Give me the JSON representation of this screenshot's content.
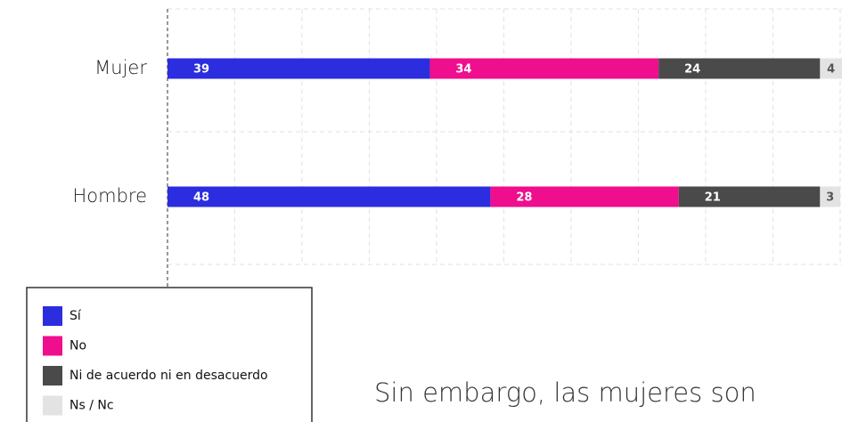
{
  "chart_data": {
    "type": "stacked-barh",
    "categories": [
      "Mujer",
      "Hombre"
    ],
    "series": [
      {
        "name": "Sí",
        "color": "#2b2ddf",
        "values": [
          39,
          48
        ]
      },
      {
        "name": "No",
        "color": "#ee0e8e",
        "values": [
          34,
          28
        ]
      },
      {
        "name": "Ni de acuerdo ni en desacuerdo",
        "color": "#4a4a4a",
        "values": [
          24,
          21
        ]
      },
      {
        "name": "Ns / Nc",
        "color": "#e3e3e3",
        "values": [
          4,
          3
        ]
      }
    ],
    "xlim": [
      0,
      100
    ],
    "xticks": [
      0,
      10,
      20,
      30,
      40,
      50,
      60,
      70,
      80,
      90,
      100
    ],
    "grid": true,
    "legend": "bottom-left",
    "annotation": "Sin embargo, las mujeres son"
  }
}
